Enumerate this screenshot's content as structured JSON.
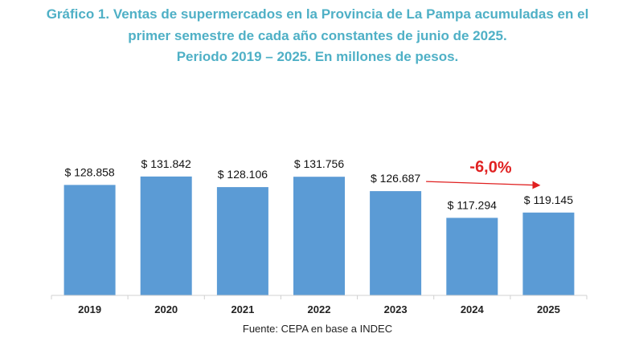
{
  "title_lines": [
    "Gráfico 1. Ventas de supermercados en la Provincia de La Pampa acumuladas en el",
    "primer semestre de cada año constantes de junio de 2025.",
    "Periodo 2019 – 2025. En millones de pesos."
  ],
  "source": "Fuente: CEPA en base a INDEC",
  "colors": {
    "title": "#4FB0C6",
    "bar": "#5B9BD5",
    "arrow": "#E02020"
  },
  "chart_data": {
    "type": "bar",
    "categories": [
      "2019",
      "2020",
      "2021",
      "2022",
      "2023",
      "2024",
      "2025"
    ],
    "values": [
      128858,
      131842,
      128106,
      131756,
      126687,
      117294,
      119145
    ],
    "value_labels": [
      "$ 128.858",
      "$ 131.842",
      "$ 128.106",
      "$ 131.756",
      "$ 126.687",
      "$ 117.294",
      "$ 119.145"
    ],
    "title": "Gráfico 1. Ventas de supermercados en la Provincia de La Pampa acumuladas en el primer semestre de cada año constantes de junio de 2025. Periodo 2019 – 2025. En millones de pesos.",
    "xlabel": "",
    "ylabel": "",
    "ylim": [
      90000,
      135000
    ],
    "grid": false,
    "legend": "none",
    "annotation": {
      "text": "-6,0%",
      "from_category": "2023",
      "to_category": "2025"
    }
  }
}
